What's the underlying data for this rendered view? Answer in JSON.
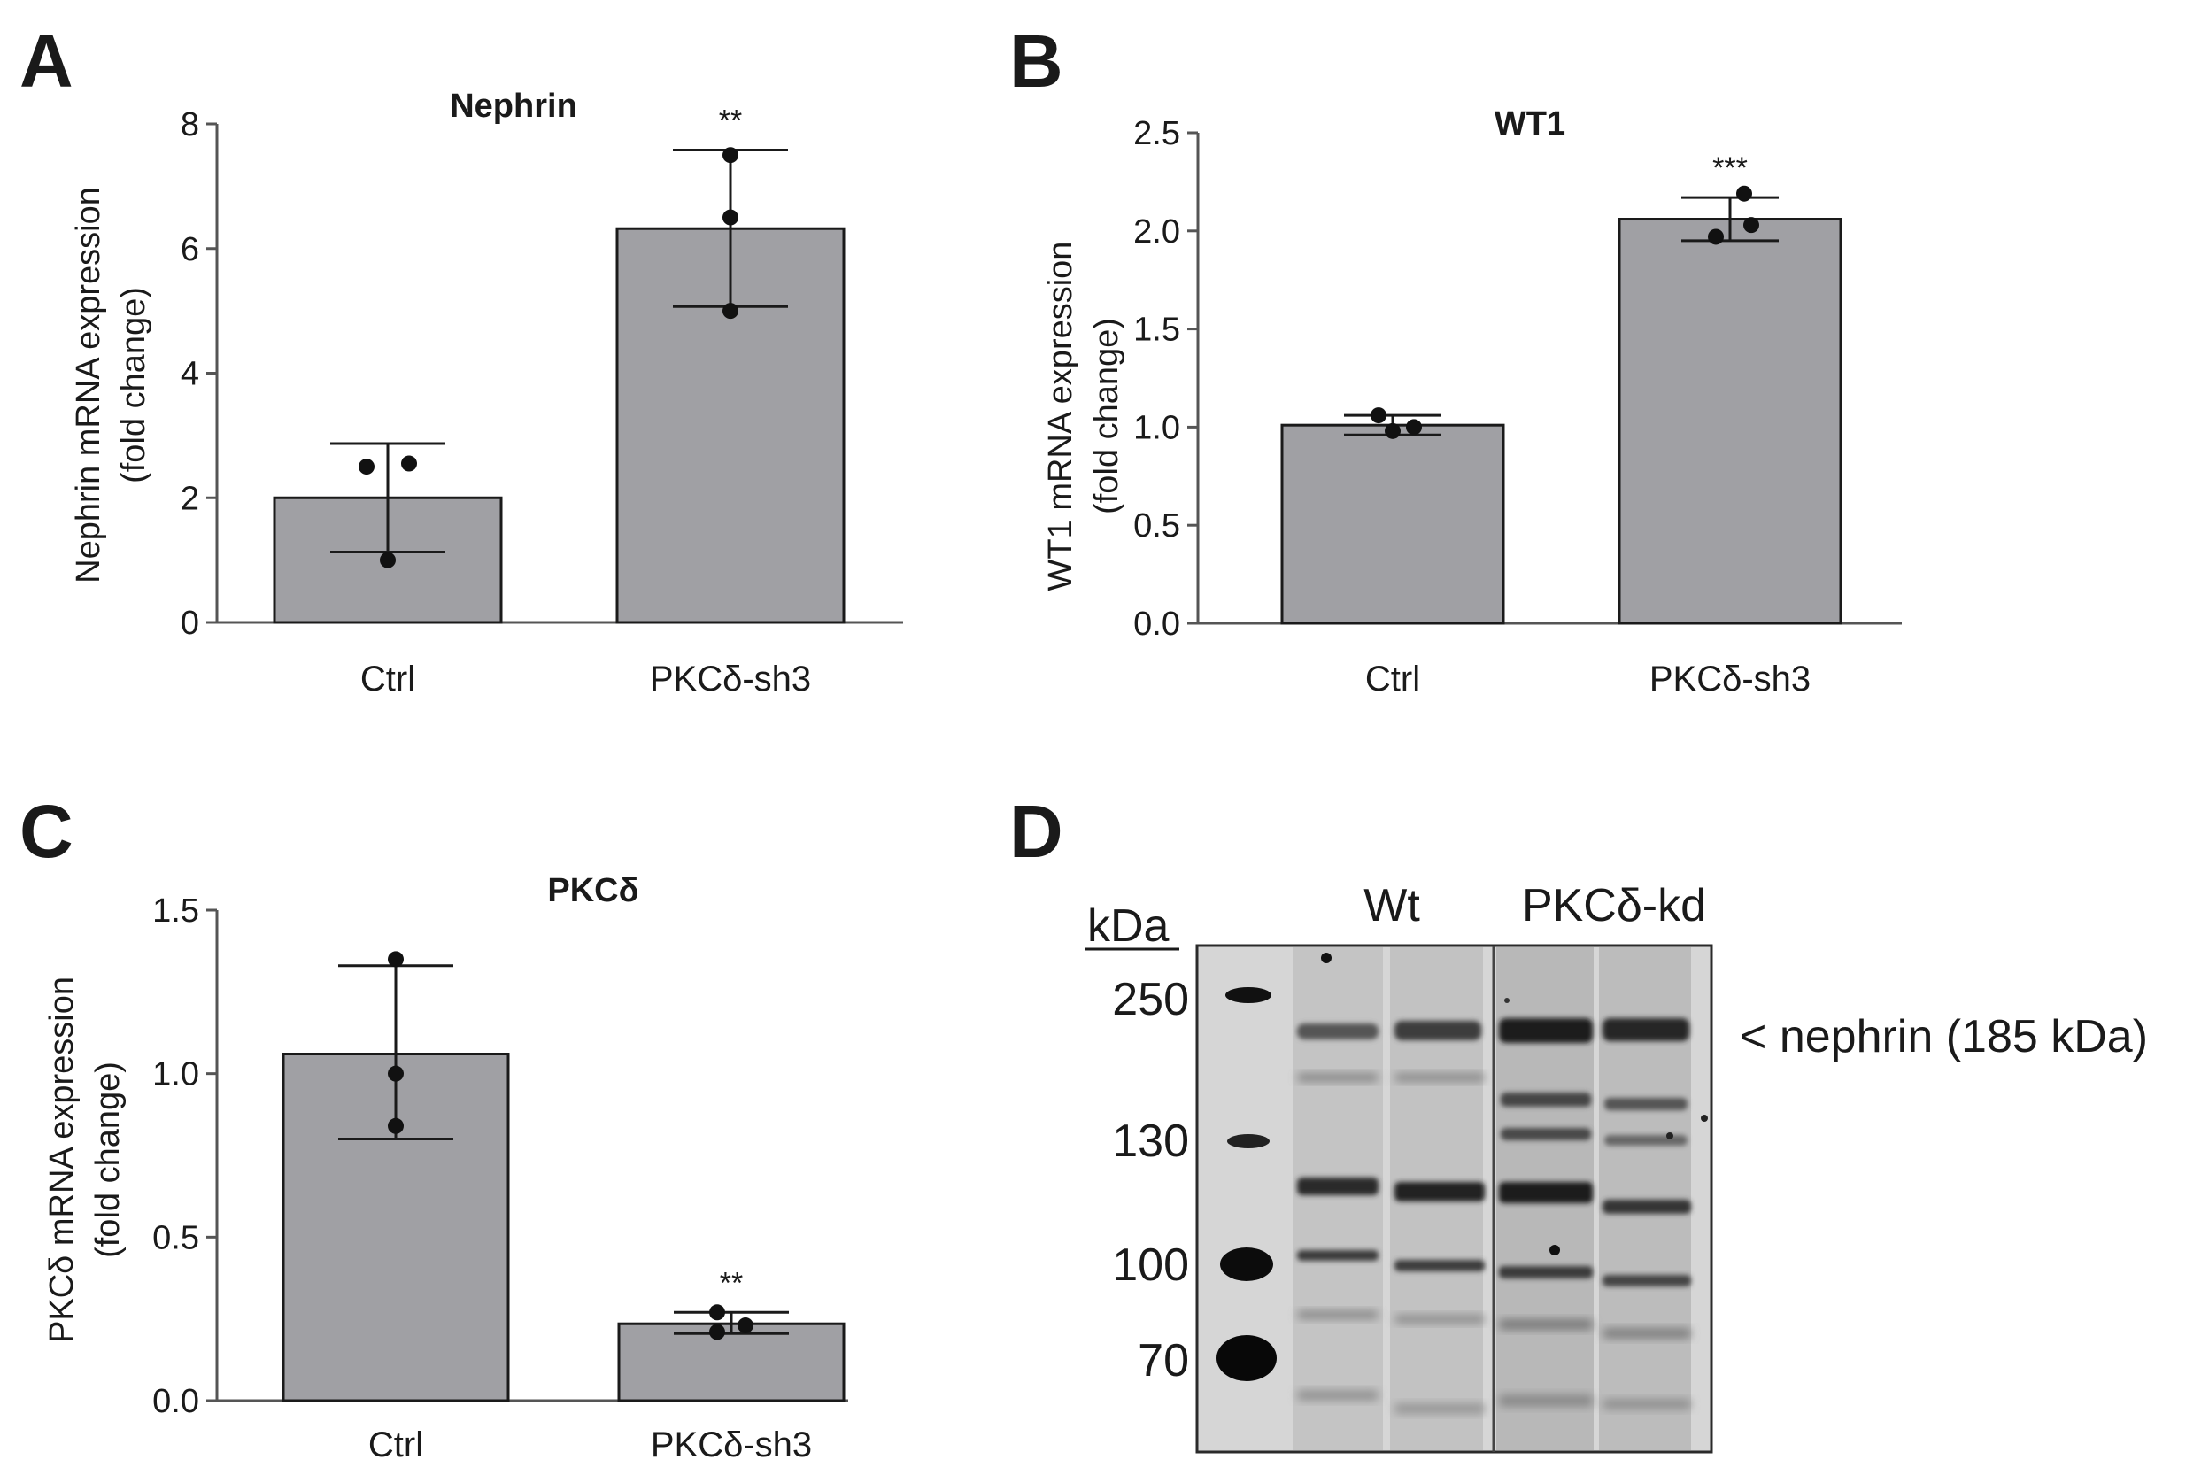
{
  "panels": [
    {
      "letter": "A"
    },
    {
      "letter": "B"
    },
    {
      "letter": "C"
    },
    {
      "letter": "D"
    }
  ],
  "chart_data": [
    {
      "panel": "A",
      "type": "bar",
      "title": "Nephrin",
      "ylabel_lines": [
        "Nephrin mRNA expression",
        "(fold change)"
      ],
      "ylabel": "Nephrin mRNA expression (fold change)",
      "xlabel": "",
      "categories": [
        "Ctrl",
        "PKCδ-sh3"
      ],
      "values": [
        2.0,
        6.32
      ],
      "error_low": [
        1.13,
        5.07
      ],
      "error_high": [
        2.87,
        7.58
      ],
      "points": [
        [
          2.5,
          2.55,
          1.0
        ],
        [
          7.5,
          6.5,
          5.0
        ]
      ],
      "significance": [
        "",
        "**"
      ],
      "ylim": [
        0,
        8
      ],
      "yticks": [
        0,
        2,
        4,
        6,
        8
      ],
      "ytick_labels": [
        "0",
        "2",
        "4",
        "6",
        "8"
      ],
      "bar_color": "#a0a0a4"
    },
    {
      "panel": "B",
      "type": "bar",
      "title": "WT1",
      "ylabel_lines": [
        "WT1 mRNA expression",
        "(fold change)"
      ],
      "ylabel": "WT1 mRNA expression (fold change)",
      "xlabel": "",
      "categories": [
        "Ctrl",
        "PKCδ-sh3"
      ],
      "values": [
        1.01,
        2.06
      ],
      "error_low": [
        0.96,
        1.95
      ],
      "error_high": [
        1.06,
        2.17
      ],
      "points": [
        [
          1.06,
          0.98,
          1.0
        ],
        [
          2.19,
          1.97,
          2.03
        ]
      ],
      "significance": [
        "",
        "***"
      ],
      "ylim": [
        0,
        2.5
      ],
      "yticks": [
        0,
        0.5,
        1.0,
        1.5,
        2.0,
        2.5
      ],
      "ytick_labels": [
        "0.0",
        "0.5",
        "1.0",
        "1.5",
        "2.0",
        "2.5"
      ],
      "bar_color": "#a0a0a4"
    },
    {
      "panel": "C",
      "type": "bar",
      "title": "PKCδ",
      "ylabel_lines": [
        "PKCδ mRNA expression",
        "(fold change)"
      ],
      "ylabel": "PKCδ mRNA expression (fold change)",
      "xlabel": "",
      "categories": [
        "Ctrl",
        "PKCδ-sh3"
      ],
      "values": [
        1.06,
        0.235
      ],
      "error_low": [
        0.8,
        0.205
      ],
      "error_high": [
        1.33,
        0.27
      ],
      "points": [
        [
          1.35,
          1.0,
          0.84
        ],
        [
          0.27,
          0.21,
          0.23
        ]
      ],
      "significance": [
        "",
        "**"
      ],
      "ylim": [
        0,
        1.5
      ],
      "yticks": [
        0,
        0.5,
        1.0,
        1.5
      ],
      "ytick_labels": [
        "0.0",
        "0.5",
        "1.0",
        "1.5"
      ],
      "bar_color": "#a0a0a4"
    }
  ],
  "blot": {
    "kda_header": "kDa",
    "group_labels": [
      "Wt",
      "PKCδ-kd"
    ],
    "markers": [
      "250",
      "130",
      "100",
      "70"
    ],
    "annotation": "< nephrin (185 kDa)"
  }
}
